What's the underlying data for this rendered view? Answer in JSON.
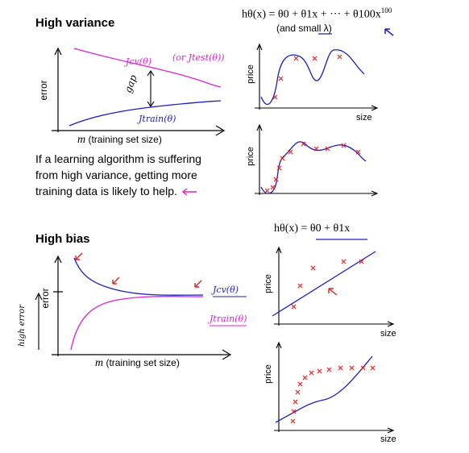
{
  "high_variance": {
    "title": "High variance",
    "formula": "hθ(x) = θ0 + θ1x + ··· + θ100x100",
    "formula_parts": {
      "lhs": "hθ(x) = θ0 + θ1x + ··· + θ100x",
      "exponent": "100"
    },
    "lambda_note": "(and small λ)",
    "curve_chart": {
      "ylabel": "error",
      "xlabel_m": "m",
      "xlabel_rest": "(training set size)",
      "jcv_label": "Jcv(θ)",
      "jtest_label": "(or Jtest(θ))",
      "gap_label": "gap",
      "jtrain_label": "Jtrain(θ)"
    },
    "fit_plot_1": {
      "ylabel": "price",
      "xlabel": "size"
    },
    "fit_plot_2": {
      "ylabel": "price",
      "xlabel": "size"
    },
    "note_lines": [
      "If a learning algorithm is suffering",
      "from high variance, getting more",
      "training data is likely to help."
    ]
  },
  "high_bias": {
    "title": "High bias",
    "formula": "hθ(x) = θ0 + θ1x",
    "curve_chart": {
      "ylabel": "error",
      "xlabel_m": "m",
      "xlabel_rest": "(training set size)",
      "jcv_label": "Jcv(θ)",
      "jtrain_label": "Jtrain(θ)",
      "high_error_note": "high error"
    },
    "fit_plot_1": {
      "ylabel": "price",
      "xlabel": "size"
    },
    "fit_plot_2": {
      "ylabel": "price",
      "xlabel": "size"
    }
  },
  "colors": {
    "ink": "#000000",
    "blue": "#1c1cc8",
    "magenta": "#e020d0",
    "red": "#e02020"
  }
}
